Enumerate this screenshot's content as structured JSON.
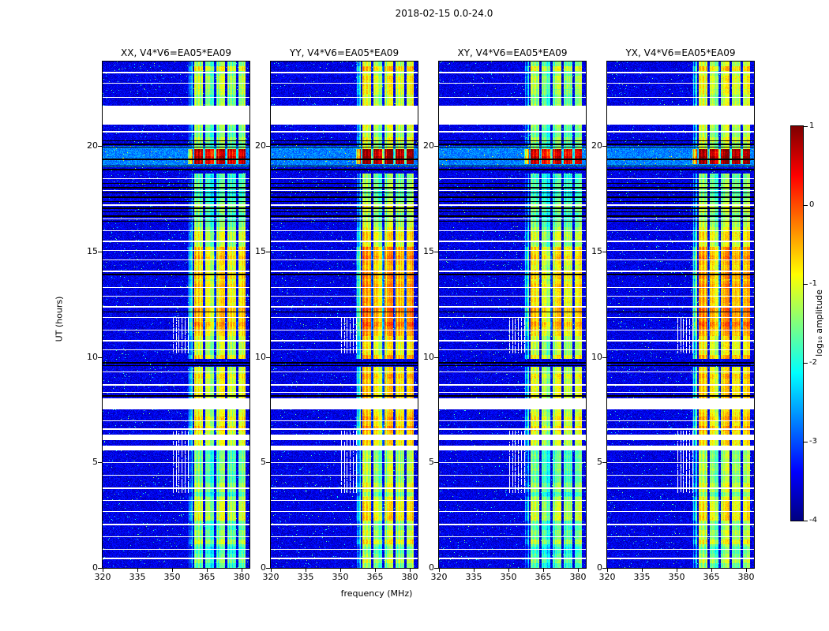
{
  "title": "2018-02-15 0.0-24.0",
  "chart_data": {
    "type": "heatmap",
    "title": "2018-02-15 0.0-24.0",
    "xlabel": "frequency (MHz)",
    "ylabel": "UT (hours)",
    "colorbar_label": "log₁₀ amplitude",
    "xlim": [
      320,
      383.5
    ],
    "ylim": [
      0,
      24
    ],
    "xticks": [
      320,
      335,
      350,
      365,
      380
    ],
    "yticks": [
      0,
      5,
      10,
      15,
      20
    ],
    "colorbar_ticks": [
      "1",
      "0",
      "-1",
      "-2",
      "-3",
      "-4"
    ],
    "clim": [
      -4,
      1
    ],
    "colormap": "jet",
    "panels": [
      {
        "label": "XX, V4*V6=EA05*EA09",
        "rfi_offset": -0.12
      },
      {
        "label": "YY, V4*V6=EA05*EA09",
        "rfi_offset": 0.22
      },
      {
        "label": "XY, V4*V6=EA05*EA09",
        "rfi_offset": -0.18
      },
      {
        "label": "YX, V4*V6=EA05*EA09",
        "rfi_offset": 0.18
      }
    ],
    "background_level": -3.5,
    "noise_sigma": 0.3,
    "rfi_band": {
      "f_min": 356.8,
      "f_max": 381.8,
      "edge_ramp_mhz": 3.5,
      "dark_channels_mhz": [
        359.3,
        363.8,
        368.6,
        373.4,
        378.2
      ],
      "profile": [
        [
          0.0,
          1.0,
          -1.6
        ],
        [
          1.0,
          2.2,
          -1.35
        ],
        [
          2.2,
          3.4,
          -1.2
        ],
        [
          3.4,
          4.6,
          -1.5
        ],
        [
          4.6,
          5.62,
          -1.35
        ],
        [
          5.78,
          6.08,
          -1.1
        ],
        [
          6.33,
          7.55,
          -0.75
        ],
        [
          8.03,
          9.55,
          -0.8
        ],
        [
          9.9,
          11.0,
          -0.9
        ],
        [
          11.0,
          13.6,
          -0.55
        ],
        [
          13.6,
          15.2,
          -0.75
        ],
        [
          15.2,
          16.4,
          -1.25
        ],
        [
          16.4,
          18.7,
          -1.55
        ],
        [
          19.15,
          19.85,
          0.65
        ],
        [
          19.85,
          20.6,
          -1.45
        ],
        [
          20.6,
          21.05,
          -1.6
        ],
        [
          21.9,
          22.7,
          -1.25
        ],
        [
          22.7,
          24.0,
          -1.1
        ]
      ]
    },
    "elevated_background": [
      [
        19.0,
        20.0,
        0.75
      ]
    ],
    "white_gaps": [
      [
        5.62,
        5.78
      ],
      [
        6.08,
        6.33
      ],
      [
        7.55,
        8.03
      ],
      [
        21.05,
        21.9
      ]
    ],
    "white_rows": [
      0.5,
      0.9,
      1.5,
      2.1,
      2.7,
      3.2,
      3.8,
      4.4,
      5.0,
      6.6,
      7.0,
      8.35,
      8.7,
      9.3,
      10.35,
      10.8,
      11.3,
      11.9,
      12.4,
      12.9,
      13.3,
      14.1,
      14.6,
      15.05,
      15.5,
      16.0,
      16.55,
      17.25,
      17.9,
      18.45,
      20.7,
      22.3,
      23.0,
      23.5
    ],
    "black_rows": [
      8.2,
      9.6,
      9.75,
      12.15,
      13.95,
      16.45,
      16.7,
      16.9,
      17.1,
      17.4,
      17.6,
      17.8,
      18.05,
      18.25,
      18.9,
      19.05,
      19.4,
      19.95,
      20.1,
      20.25
    ],
    "vertical_white_lines_mhz": [
      350.3,
      351.6,
      352.9,
      354.2,
      355.5,
      356.8
    ],
    "vertical_white_line_windows": [
      [
        3.6,
        6.5
      ],
      [
        10.2,
        11.85
      ]
    ]
  }
}
